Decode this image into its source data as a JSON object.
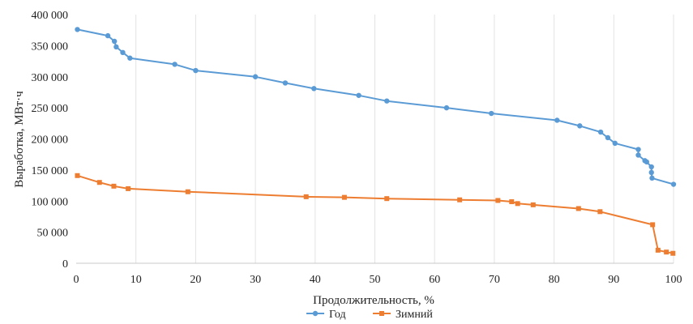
{
  "chart_data": {
    "type": "line",
    "title": "",
    "xlabel": "Продолжительность, %",
    "ylabel": "Выработка, МВт·ч",
    "xlim": [
      0,
      100
    ],
    "ylim": [
      0,
      400000
    ],
    "x_ticks": [
      0,
      10,
      20,
      30,
      40,
      50,
      60,
      70,
      80,
      90,
      100
    ],
    "x_tick_labels": [
      "0",
      "10",
      "20",
      "30",
      "40",
      "50",
      "60",
      "70",
      "80",
      "90",
      "100"
    ],
    "y_ticks": [
      0,
      50000,
      100000,
      150000,
      200000,
      250000,
      300000,
      350000,
      400000
    ],
    "y_tick_labels": [
      "0",
      "50 000",
      "100 000",
      "150 000",
      "200 000",
      "250 000",
      "300 000",
      "350 000",
      "400 000"
    ],
    "grid": "vertical",
    "legend_position": "bottom",
    "series": [
      {
        "name": "Год",
        "color": "#5b9bd5",
        "marker": "circle",
        "points": [
          [
            0.2,
            376000
          ],
          [
            5.3,
            366000
          ],
          [
            6.4,
            357000
          ],
          [
            6.7,
            348000
          ],
          [
            7.8,
            339000
          ],
          [
            9.0,
            330000
          ],
          [
            16.5,
            320000
          ],
          [
            20.0,
            310000
          ],
          [
            30.0,
            300000
          ],
          [
            35.0,
            290000
          ],
          [
            39.8,
            281000
          ],
          [
            47.3,
            270000
          ],
          [
            52.0,
            261000
          ],
          [
            62.0,
            250000
          ],
          [
            69.5,
            241000
          ],
          [
            80.5,
            230000
          ],
          [
            84.3,
            221000
          ],
          [
            87.8,
            211000
          ],
          [
            89.0,
            202000
          ],
          [
            90.2,
            193000
          ],
          [
            94.1,
            183000
          ],
          [
            94.1,
            174000
          ],
          [
            95.2,
            165000
          ],
          [
            95.5,
            163000
          ],
          [
            96.3,
            155000
          ],
          [
            96.3,
            146000
          ],
          [
            96.4,
            137000
          ],
          [
            100.0,
            127000
          ]
        ]
      },
      {
        "name": "Зимний",
        "color": "#ed7d31",
        "marker": "square",
        "points": [
          [
            0.2,
            141000
          ],
          [
            3.9,
            130000
          ],
          [
            6.3,
            124000
          ],
          [
            8.7,
            120000
          ],
          [
            18.7,
            115000
          ],
          [
            38.5,
            107000
          ],
          [
            44.9,
            106000
          ],
          [
            52.0,
            104000
          ],
          [
            64.2,
            102000
          ],
          [
            70.6,
            101000
          ],
          [
            72.9,
            99000
          ],
          [
            73.9,
            96000
          ],
          [
            76.5,
            94000
          ],
          [
            84.1,
            88000
          ],
          [
            87.7,
            83000
          ],
          [
            96.5,
            62000
          ],
          [
            97.4,
            21000
          ],
          [
            98.8,
            18000
          ],
          [
            99.9,
            16000
          ]
        ]
      }
    ]
  }
}
